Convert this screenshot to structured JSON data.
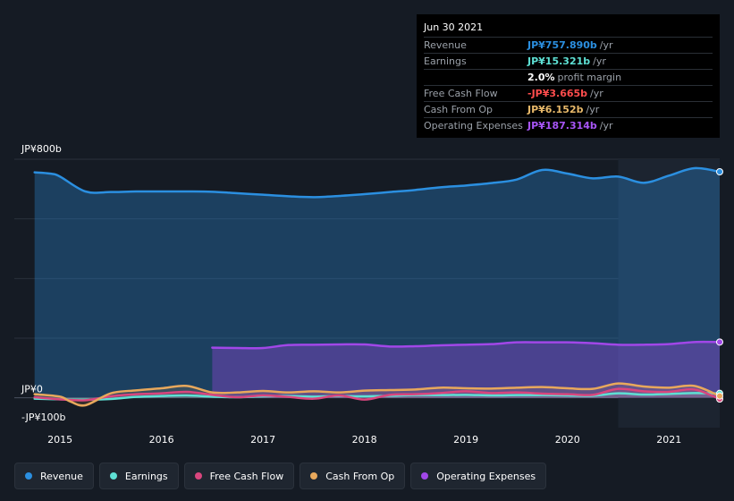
{
  "colors": {
    "background": "#151b24",
    "revenue": "#2b8fe0",
    "earnings": "#5ee0d4",
    "fcf": "#d9467e",
    "cfo": "#e8a85c",
    "opex": "#a147e8"
  },
  "tooltip": {
    "date": "Jun 30 2021",
    "rows": [
      {
        "label": "Revenue",
        "value": "JP¥757.890b",
        "unit": "/yr",
        "color": "#2b8fe0"
      },
      {
        "label": "Earnings",
        "value": "JP¥15.321b",
        "unit": "/yr",
        "color": "#5ee0d4"
      },
      {
        "label": "",
        "value": "2.0%",
        "unit": "profit margin",
        "color": "#ffffff"
      },
      {
        "label": "Free Cash Flow",
        "value": "-JP¥3.665b",
        "unit": "/yr",
        "color": "#ff4d4d"
      },
      {
        "label": "Cash From Op",
        "value": "JP¥6.152b",
        "unit": "/yr",
        "color": "#e8b96a"
      },
      {
        "label": "Operating Expenses",
        "value": "JP¥187.314b",
        "unit": "/yr",
        "color": "#a855f7"
      }
    ]
  },
  "legend": [
    {
      "label": "Revenue",
      "color": "#2b8fe0"
    },
    {
      "label": "Earnings",
      "color": "#5ee0d4"
    },
    {
      "label": "Free Cash Flow",
      "color": "#d9467e"
    },
    {
      "label": "Cash From Op",
      "color": "#e8a85c"
    },
    {
      "label": "Operating Expenses",
      "color": "#a147e8"
    }
  ],
  "chart_data": {
    "type": "area",
    "y_tick_labels": [
      "JP¥800b",
      "JP¥0",
      "-JP¥100b"
    ],
    "x_tick_labels": [
      "2015",
      "2016",
      "2017",
      "2018",
      "2019",
      "2020",
      "2021"
    ],
    "ylim": [
      -100,
      800
    ],
    "xlim": [
      2014.55,
      2021.5
    ],
    "grid": true,
    "legend_position": "bottom",
    "highlight_region": [
      2020.5,
      2021.5
    ],
    "series": [
      {
        "name": "Revenue",
        "color": "#2b8fe0",
        "x": [
          2014.75,
          2014.9,
          2015.0,
          2015.25,
          2015.5,
          2015.75,
          2016.0,
          2016.25,
          2016.5,
          2016.75,
          2017.0,
          2017.25,
          2017.5,
          2017.75,
          2018.0,
          2018.25,
          2018.5,
          2018.75,
          2019.0,
          2019.25,
          2019.5,
          2019.75,
          2020.0,
          2020.25,
          2020.5,
          2020.75,
          2021.0,
          2021.25,
          2021.5
        ],
        "values": [
          756,
          752,
          742,
          692,
          690,
          692,
          692,
          692,
          691,
          686,
          681,
          676,
          673,
          677,
          683,
          690,
          697,
          706,
          712,
          720,
          732,
          764,
          752,
          736,
          742,
          721,
          745,
          770,
          758
        ]
      },
      {
        "name": "Earnings",
        "color": "#5ee0d4",
        "x": [
          2014.75,
          2015.0,
          2015.25,
          2015.5,
          2015.75,
          2016.0,
          2016.25,
          2016.5,
          2016.75,
          2017.0,
          2017.25,
          2017.5,
          2017.75,
          2018.0,
          2018.25,
          2018.5,
          2018.75,
          2019.0,
          2019.25,
          2019.5,
          2019.75,
          2020.0,
          2020.25,
          2020.5,
          2020.75,
          2021.0,
          2021.25,
          2021.5
        ],
        "values": [
          -3,
          -5,
          -6,
          -4,
          3,
          6,
          8,
          4,
          2,
          5,
          6,
          4,
          6,
          5,
          7,
          9,
          9,
          10,
          8,
          9,
          9,
          8,
          7,
          15,
          11,
          13,
          16,
          15
        ]
      },
      {
        "name": "Free Cash Flow",
        "color": "#d9467e",
        "x": [
          2014.75,
          2015.0,
          2015.25,
          2015.5,
          2015.75,
          2016.0,
          2016.25,
          2016.5,
          2016.75,
          2017.0,
          2017.25,
          2017.5,
          2017.75,
          2018.0,
          2018.25,
          2018.5,
          2018.75,
          2019.0,
          2019.25,
          2019.5,
          2019.75,
          2020.0,
          2020.25,
          2020.5,
          2020.75,
          2021.0,
          2021.25,
          2021.5
        ],
        "values": [
          2,
          -5,
          -8,
          5,
          12,
          15,
          20,
          10,
          2,
          8,
          3,
          -3,
          8,
          -6,
          10,
          12,
          16,
          22,
          16,
          18,
          14,
          12,
          10,
          30,
          22,
          20,
          28,
          -4
        ]
      },
      {
        "name": "Cash From Op",
        "color": "#e8a85c",
        "x": [
          2014.75,
          2015.0,
          2015.1,
          2015.25,
          2015.5,
          2015.75,
          2016.0,
          2016.25,
          2016.5,
          2016.75,
          2017.0,
          2017.25,
          2017.5,
          2017.75,
          2018.0,
          2018.25,
          2018.5,
          2018.75,
          2019.0,
          2019.25,
          2019.5,
          2019.75,
          2020.0,
          2020.25,
          2020.5,
          2020.75,
          2021.0,
          2021.25,
          2021.5
        ],
        "values": [
          12,
          4,
          -12,
          -25,
          15,
          25,
          32,
          40,
          18,
          18,
          23,
          18,
          22,
          18,
          24,
          26,
          28,
          34,
          32,
          31,
          34,
          36,
          32,
          30,
          48,
          38,
          34,
          40,
          6
        ]
      },
      {
        "name": "Operating Expenses",
        "color": "#a147e8",
        "x": [
          2016.5,
          2016.75,
          2017.0,
          2017.25,
          2017.5,
          2017.75,
          2018.0,
          2018.25,
          2018.5,
          2018.75,
          2019.0,
          2019.25,
          2019.5,
          2019.75,
          2020.0,
          2020.25,
          2020.5,
          2020.75,
          2021.0,
          2021.25,
          2021.5
        ],
        "values": [
          168,
          167,
          167,
          177,
          178,
          179,
          179,
          172,
          173,
          176,
          178,
          180,
          186,
          186,
          186,
          183,
          178,
          178,
          180,
          187,
          187
        ]
      }
    ]
  }
}
